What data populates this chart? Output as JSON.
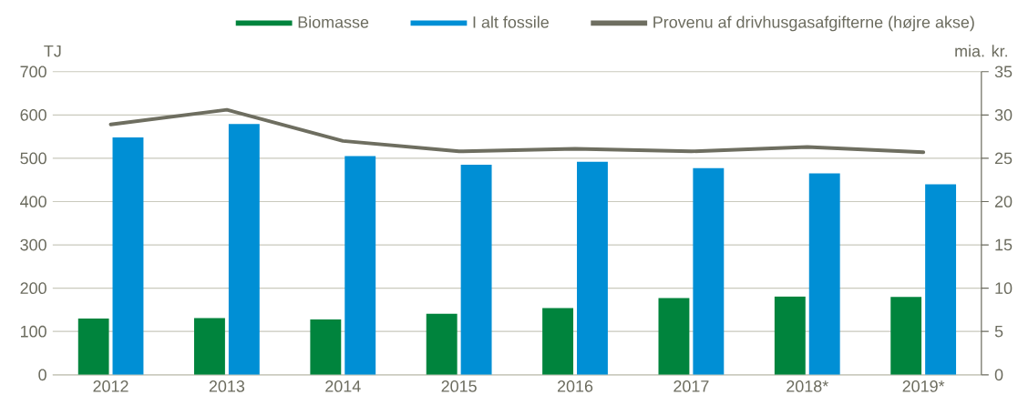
{
  "chart_data": {
    "type": "bar",
    "categories": [
      "2012",
      "2013",
      "2014",
      "2015",
      "2016",
      "2017",
      "2018*",
      "2019*"
    ],
    "ylabel": "TJ",
    "y2label": "mia. kr.",
    "ylim": [
      0,
      700
    ],
    "yticks": [
      0,
      100,
      200,
      300,
      400,
      500,
      600,
      700
    ],
    "y2lim": [
      0,
      35
    ],
    "y2ticks": [
      0,
      5,
      10,
      15,
      20,
      25,
      30,
      35
    ],
    "grid": "y",
    "legend": "top right",
    "series": [
      {
        "name": "Biomasse",
        "color": "#00843d",
        "values": [
          130,
          131,
          128,
          141,
          154,
          177,
          181,
          180
        ]
      },
      {
        "name": "I alt fossile",
        "color": "#008fd5",
        "values": [
          548,
          579,
          505,
          485,
          492,
          477,
          465,
          440
        ]
      },
      {
        "name": "Provenu af drivhusgasafgifterne (højre akse)",
        "type": "line",
        "axis": "y2",
        "color": "#6e6e60",
        "values": [
          28.9,
          30.6,
          27.0,
          25.8,
          26.1,
          25.8,
          26.3,
          25.7
        ]
      }
    ]
  }
}
